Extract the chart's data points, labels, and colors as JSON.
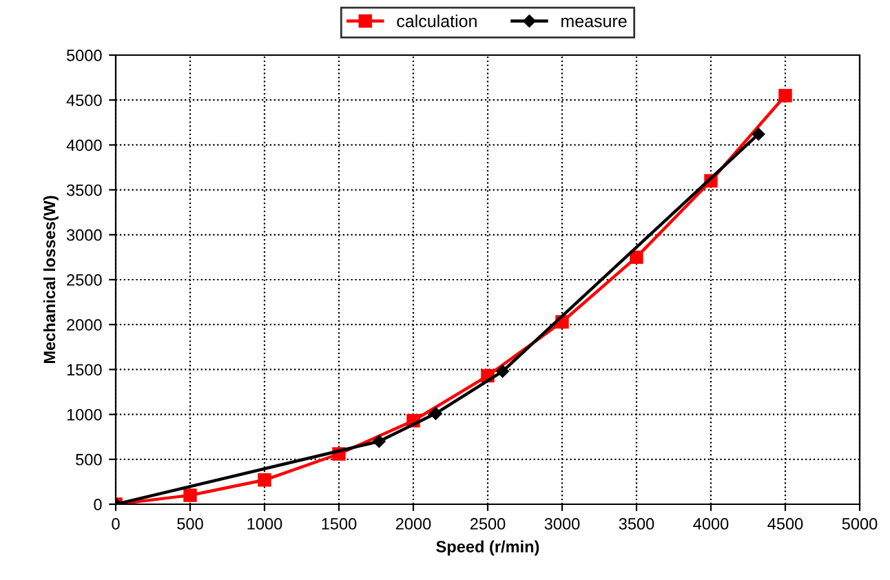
{
  "chart_data": {
    "type": "line",
    "xlabel": "Speed (r/min)",
    "ylabel": "Mechanical losses(W)",
    "xlim": [
      0,
      5000
    ],
    "xticks": [
      0,
      500,
      1000,
      1500,
      2000,
      2500,
      3000,
      3500,
      4000,
      4500,
      5000
    ],
    "ylim": [
      0,
      5000
    ],
    "yticks": [
      0,
      500,
      1000,
      1500,
      2000,
      2500,
      3000,
      3500,
      4000,
      4500,
      5000
    ],
    "grid": true,
    "legend": "top",
    "line_style": "solid",
    "series": [
      {
        "name": "calculation",
        "color": "#ff0000",
        "marker": "square",
        "x": [
          0,
          500,
          1000,
          1500,
          2000,
          2500,
          3000,
          3500,
          4000,
          4500
        ],
        "values": [
          0,
          100,
          270,
          560,
          930,
          1430,
          2030,
          2750,
          3600,
          4550
        ]
      },
      {
        "name": "measure",
        "color": "#000000",
        "marker": "diamond",
        "x": [
          0,
          1770,
          2150,
          2600,
          4320
        ],
        "values": [
          0,
          700,
          1010,
          1480,
          4120
        ]
      }
    ]
  }
}
